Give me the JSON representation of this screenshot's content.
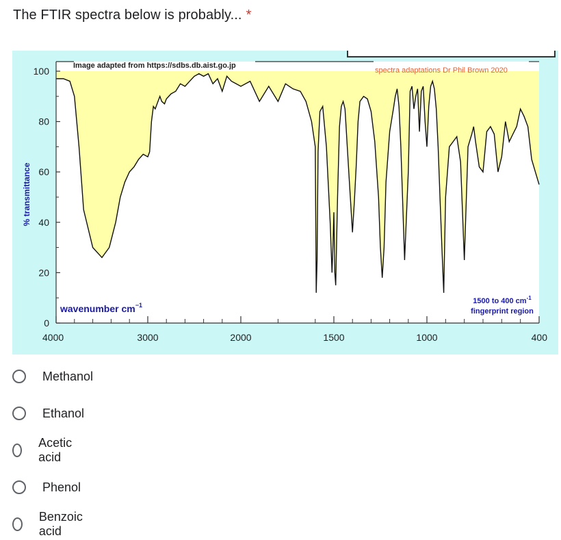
{
  "question": {
    "text": "The FTIR spectra below is probably...",
    "required_mark": "*"
  },
  "figure": {
    "credit_left": "Image adapted from https://sdbs.db.aist.go.jp",
    "credit_right": "spectra adaptations Dr Phil Brown 2020",
    "colors": {
      "background": "#ccf7f7",
      "fill": "#ffffaa",
      "trace": "#111111",
      "label_blue": "#1a1aa6",
      "credit_red": "#e0623a"
    }
  },
  "chart_data": {
    "type": "line",
    "ylabel": "% transmittance",
    "xlabel": "wavenumber cm",
    "xlabel_superscript": "−1",
    "x_ticks": [
      "4000",
      "3000",
      "2000",
      "1500",
      "1000",
      "400"
    ],
    "y_ticks": [
      "0",
      "20",
      "40",
      "60",
      "80",
      "100"
    ],
    "ylim": [
      0,
      100
    ],
    "annotation": {
      "line1": "1500 to 400 cm",
      "sup": "-1",
      "line2": "fingerprint region"
    },
    "series": [
      {
        "values_x_wavenumber": [
          4000,
          3920,
          3850,
          3800,
          3750,
          3700,
          3600,
          3500,
          3420,
          3350,
          3300,
          3250,
          3200,
          3150,
          3100,
          3050,
          3000,
          2980,
          2960,
          2940,
          2920,
          2900,
          2870,
          2850,
          2820,
          2800,
          2750,
          2700,
          2650,
          2600,
          2550,
          2500,
          2450,
          2400,
          2350,
          2300,
          2250,
          2200,
          2150,
          2100,
          2050,
          2000,
          1950,
          1900,
          1850,
          1800,
          1760,
          1720,
          1680,
          1650,
          1620,
          1600,
          1595,
          1590,
          1585,
          1575,
          1560,
          1540,
          1520,
          1510,
          1505,
          1500,
          1495,
          1490,
          1480,
          1470,
          1460,
          1450,
          1440,
          1420,
          1400,
          1390,
          1380,
          1370,
          1360,
          1340,
          1320,
          1300,
          1280,
          1260,
          1250,
          1240,
          1230,
          1220,
          1200,
          1180,
          1170,
          1160,
          1150,
          1140,
          1120,
          1100,
          1090,
          1080,
          1070,
          1060,
          1050,
          1040,
          1030,
          1020,
          1010,
          1000,
          990,
          980,
          970,
          960,
          950,
          940,
          930,
          920,
          910,
          900,
          880,
          860,
          840,
          820,
          800,
          780,
          760,
          750,
          740,
          720,
          700,
          680,
          660,
          640,
          620,
          600,
          580,
          560,
          540,
          520,
          500,
          480,
          460,
          440,
          420,
          400
        ],
        "values_y_percent": [
          97,
          97,
          96,
          90,
          70,
          45,
          30,
          26,
          30,
          40,
          50,
          56,
          60,
          62,
          65,
          67,
          66,
          68,
          80,
          86,
          85,
          87,
          90,
          88,
          87,
          89,
          91,
          92,
          95,
          94,
          96,
          98,
          99,
          98,
          99,
          95,
          97,
          92,
          98,
          96,
          95,
          94,
          96,
          88,
          94,
          88,
          95,
          93,
          92,
          88,
          80,
          70,
          12,
          25,
          68,
          84,
          86,
          70,
          40,
          20,
          30,
          44,
          20,
          15,
          50,
          78,
          86,
          88,
          85,
          60,
          36,
          48,
          62,
          80,
          88,
          90,
          89,
          84,
          72,
          50,
          30,
          18,
          30,
          56,
          76,
          85,
          90,
          93,
          86,
          70,
          25,
          60,
          92,
          94,
          85,
          90,
          93,
          76,
          92,
          94,
          80,
          70,
          86,
          94,
          96,
          93,
          85,
          70,
          50,
          30,
          12,
          50,
          70,
          72,
          74,
          64,
          25,
          70,
          75,
          78,
          72,
          62,
          60,
          76,
          78,
          75,
          60,
          66,
          80,
          72,
          75,
          78,
          85,
          82,
          78,
          65,
          60,
          55
        ]
      }
    ]
  },
  "options": [
    {
      "label": "Methanol"
    },
    {
      "label": "Ethanol"
    },
    {
      "label": "Acetic acid"
    },
    {
      "label": "Phenol"
    },
    {
      "label": "Benzoic acid"
    }
  ]
}
